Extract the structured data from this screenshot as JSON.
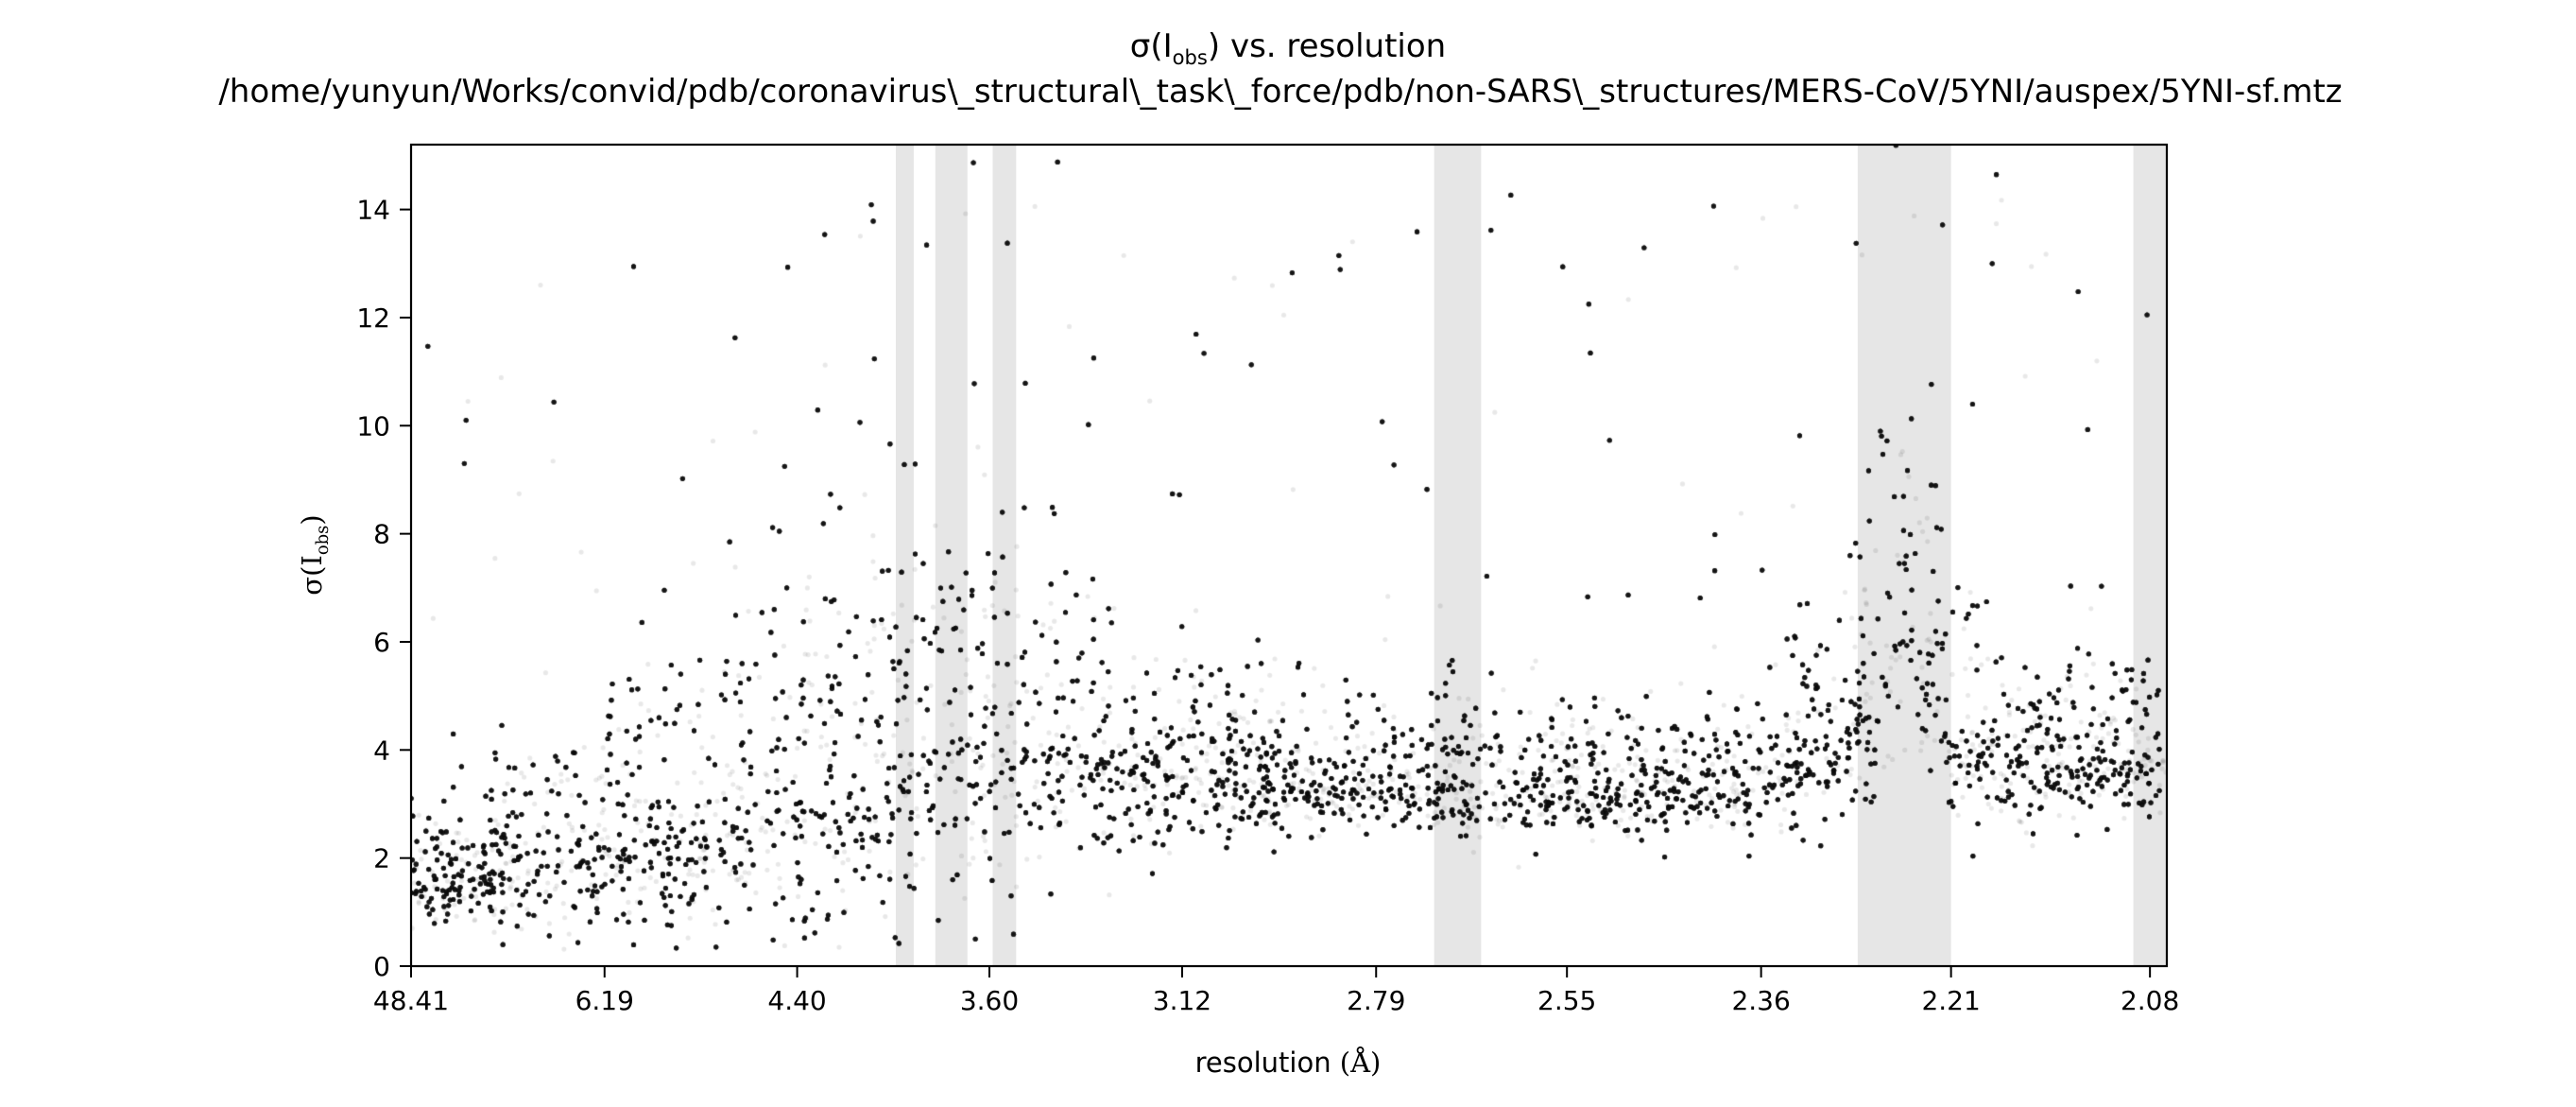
{
  "chart_data": {
    "type": "scatter",
    "title": {
      "line1_symbol": "σ(I",
      "line1_subscript": "obs",
      "line1_close": ")",
      "line1_rest": " vs. resolution",
      "line2": "/home/yunyun/Works/convid/pdb/coronavirus\\_structural\\_task\\_force/pdb/non-SARS\\_structures/MERS-CoV/5YNI/auspex/5YNI-sf.mtz"
    },
    "xlabel": {
      "text": "resolution ",
      "unit": "(Å)"
    },
    "ylabel": {
      "symbol": "σ(I",
      "subscript": "obs",
      "close": ")"
    },
    "x_scale": "reciprocal-squared",
    "x_range_angstrom": [
      48.41,
      2.07
    ],
    "x_ticks": [
      "48.41",
      "6.19",
      "4.40",
      "3.60",
      "3.12",
      "2.79",
      "2.55",
      "2.36",
      "2.21",
      "2.08"
    ],
    "ylim": [
      0,
      15.2
    ],
    "y_ticks": [
      0,
      2,
      4,
      6,
      8,
      10,
      12,
      14
    ],
    "grid": false,
    "legend": "none",
    "ice_ring_bands_angstrom": [
      [
        3.93,
        3.86
      ],
      [
        3.78,
        3.67
      ],
      [
        3.59,
        3.52
      ],
      [
        2.71,
        2.65
      ],
      [
        2.28,
        2.21
      ],
      [
        2.09,
        2.07
      ]
    ],
    "point_color": "#000000",
    "band_color": "#e6e6e6",
    "observation_trend": {
      "resolution_angstrom": [
        20.0,
        8.0,
        6.19,
        5.0,
        4.4,
        3.9,
        3.6,
        3.3,
        3.12,
        2.95,
        2.79,
        2.65,
        2.55,
        2.45,
        2.36,
        2.28,
        2.24,
        2.21,
        2.15,
        2.08
      ],
      "median_sigma": [
        1.6,
        1.8,
        2.2,
        2.5,
        3.0,
        4.0,
        4.2,
        3.9,
        3.6,
        3.4,
        3.3,
        3.3,
        3.3,
        3.3,
        3.4,
        4.6,
        6.5,
        4.2,
        3.7,
        3.9
      ],
      "spread_sigma": [
        0.6,
        1.2,
        1.6,
        2.0,
        2.4,
        2.6,
        2.2,
        1.4,
        1.1,
        0.9,
        0.8,
        0.8,
        0.8,
        0.8,
        0.8,
        1.8,
        2.6,
        1.3,
        0.9,
        0.9
      ]
    }
  }
}
